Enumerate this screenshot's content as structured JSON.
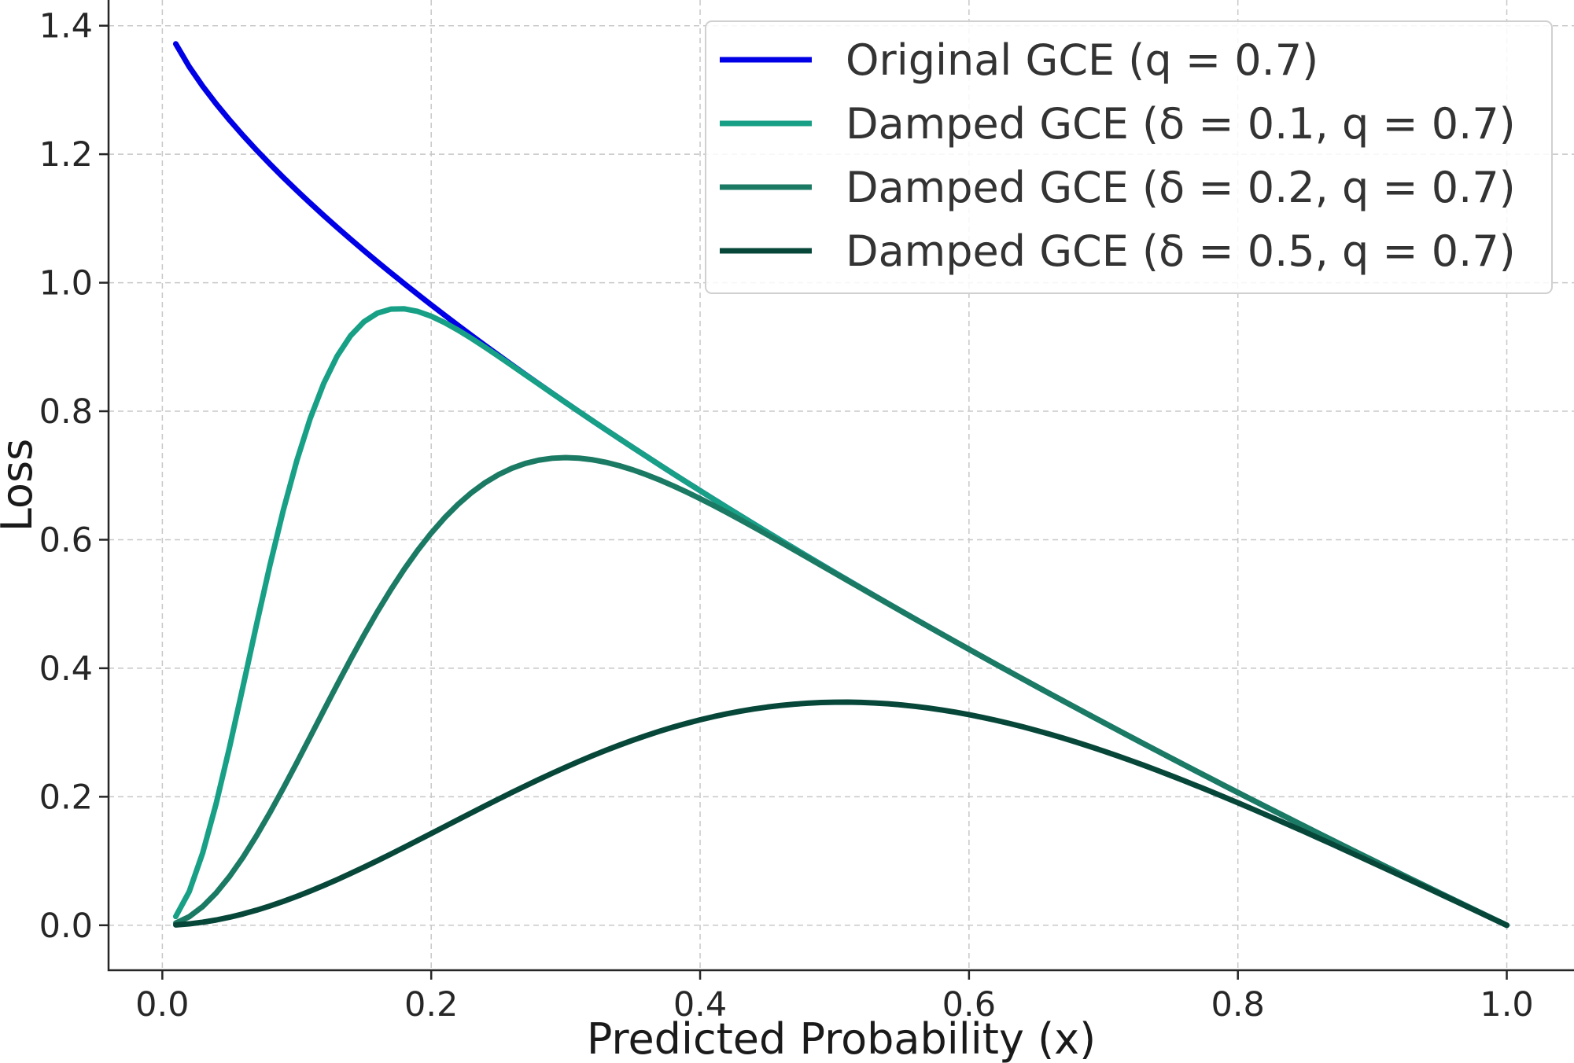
{
  "chart_data": {
    "type": "line",
    "xlabel": "Predicted Probability (x)",
    "ylabel": "Loss",
    "xlim": [
      -0.04,
      1.05
    ],
    "ylim": [
      -0.07,
      1.44
    ],
    "x_ticks": [
      "0.0",
      "0.2",
      "0.4",
      "0.6",
      "0.8",
      "1.0"
    ],
    "y_ticks": [
      "0.0",
      "0.2",
      "0.4",
      "0.6",
      "0.8",
      "1.0",
      "1.2",
      "1.4"
    ],
    "grid": true,
    "legend_position": "top-right",
    "q": 0.7,
    "x_range": [
      0.01,
      1.0
    ],
    "series": [
      {
        "name": "Original GCE (q = 0.7)",
        "delta": null,
        "color": "#0000e6"
      },
      {
        "name": "Damped GCE (δ = 0.1, q = 0.7)",
        "delta": 0.1,
        "color": "#17a085"
      },
      {
        "name": "Damped GCE (δ = 0.2, q = 0.7)",
        "delta": 0.2,
        "color": "#1b7a63"
      },
      {
        "name": "Damped GCE (δ = 0.5, q = 0.7)",
        "delta": 0.5,
        "color": "#07473a"
      }
    ]
  }
}
